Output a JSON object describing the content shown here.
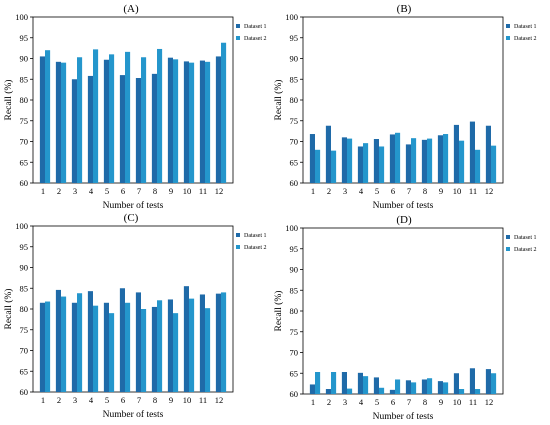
{
  "colors": {
    "dataset1": "#1f6aa8",
    "dataset2": "#2496cc"
  },
  "chart_data": [
    {
      "type": "bar",
      "title": "(A)",
      "xlabel": "Number of tests",
      "ylabel": "Recall (%)",
      "ylim": [
        60,
        100
      ],
      "yticks": [
        60,
        65,
        70,
        75,
        80,
        85,
        90,
        95,
        100
      ],
      "categories": [
        "1",
        "2",
        "3",
        "4",
        "5",
        "6",
        "7",
        "8",
        "9",
        "10",
        "11",
        "12"
      ],
      "legend_position": "top-right",
      "series": [
        {
          "name": "Dataset 1",
          "values": [
            90.5,
            89.2,
            85.0,
            85.8,
            89.7,
            86.0,
            85.3,
            86.3,
            90.2,
            89.3,
            89.5,
            90.5
          ]
        },
        {
          "name": "Dataset 2",
          "values": [
            92.0,
            89.0,
            90.3,
            92.2,
            91.0,
            91.6,
            90.3,
            92.3,
            89.8,
            89.0,
            89.2,
            93.8
          ]
        }
      ]
    },
    {
      "type": "bar",
      "title": "(B)",
      "xlabel": "Number of tests",
      "ylabel": "Recall (%)",
      "ylim": [
        60,
        100
      ],
      "yticks": [
        60,
        65,
        70,
        75,
        80,
        85,
        90,
        95,
        100
      ],
      "categories": [
        "1",
        "2",
        "3",
        "4",
        "5",
        "6",
        "7",
        "8",
        "9",
        "10",
        "11",
        "12"
      ],
      "legend_position": "top-right",
      "series": [
        {
          "name": "Dataset 1",
          "values": [
            71.8,
            73.8,
            71.0,
            68.8,
            70.6,
            71.7,
            69.3,
            70.4,
            71.5,
            74.0,
            74.8,
            73.8
          ]
        },
        {
          "name": "Dataset 2",
          "values": [
            68.0,
            67.8,
            70.7,
            69.6,
            68.8,
            72.1,
            70.8,
            70.7,
            71.8,
            70.2,
            68.0,
            69.0
          ]
        }
      ]
    },
    {
      "type": "bar",
      "title": "(C)",
      "xlabel": "Number of tests",
      "ylabel": "Recall (%)",
      "ylim": [
        60,
        100
      ],
      "yticks": [
        60,
        65,
        70,
        75,
        80,
        85,
        90,
        95,
        100
      ],
      "categories": [
        "1",
        "2",
        "3",
        "4",
        "5",
        "6",
        "7",
        "8",
        "9",
        "10",
        "11",
        "12"
      ],
      "legend_position": "top-right",
      "series": [
        {
          "name": "Dataset 1",
          "values": [
            81.5,
            84.6,
            81.5,
            84.3,
            81.5,
            85.0,
            84.0,
            80.5,
            82.3,
            85.5,
            83.5,
            83.7
          ]
        },
        {
          "name": "Dataset 2",
          "values": [
            81.8,
            83.0,
            83.8,
            80.8,
            79.0,
            81.5,
            80.0,
            82.1,
            79.0,
            82.5,
            80.2,
            84.0
          ]
        }
      ]
    },
    {
      "type": "bar",
      "title": "(D)",
      "xlabel": "Number of tests",
      "ylabel": "Recall (%)",
      "ylim": [
        60,
        100
      ],
      "yticks": [
        60,
        65,
        70,
        75,
        80,
        85,
        90,
        95,
        100
      ],
      "categories": [
        "1",
        "2",
        "3",
        "4",
        "5",
        "6",
        "7",
        "8",
        "9",
        "10",
        "11",
        "12"
      ],
      "legend_position": "top-right",
      "series": [
        {
          "name": "Dataset 1",
          "values": [
            62.3,
            61.2,
            65.3,
            65.1,
            64.0,
            61.0,
            63.3,
            63.5,
            63.1,
            65.0,
            66.2,
            66.0
          ]
        },
        {
          "name": "Dataset 2",
          "values": [
            65.3,
            65.3,
            61.3,
            64.3,
            61.5,
            63.5,
            62.8,
            63.8,
            62.8,
            61.2,
            61.2,
            65.0
          ]
        }
      ]
    }
  ]
}
